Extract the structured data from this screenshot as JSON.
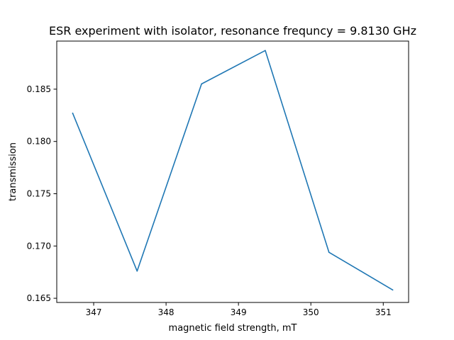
{
  "chart_data": {
    "type": "line",
    "title": "ESR experiment with isolator, resonance frequncy = 9.8130 GHz",
    "xlabel": "magnetic field strength, mT",
    "ylabel": "transmission",
    "xlim": [
      346.49,
      351.35
    ],
    "ylim": [
      0.1646,
      0.1896
    ],
    "grid": false,
    "x_ticks": [
      347,
      348,
      349,
      350,
      351
    ],
    "x_tick_labels": [
      "347",
      "348",
      "349",
      "350",
      "351"
    ],
    "y_ticks": [
      0.165,
      0.17,
      0.175,
      0.18,
      0.185
    ],
    "y_tick_labels": [
      "0.165",
      "0.170",
      "0.175",
      "0.180",
      "0.185"
    ],
    "series": [
      {
        "color": "#1f77b4",
        "x": [
          346.71,
          347.6,
          348.49,
          349.37,
          350.25,
          351.13
        ],
        "y": [
          0.1827,
          0.1676,
          0.1855,
          0.1887,
          0.1694,
          0.1658
        ]
      }
    ]
  }
}
